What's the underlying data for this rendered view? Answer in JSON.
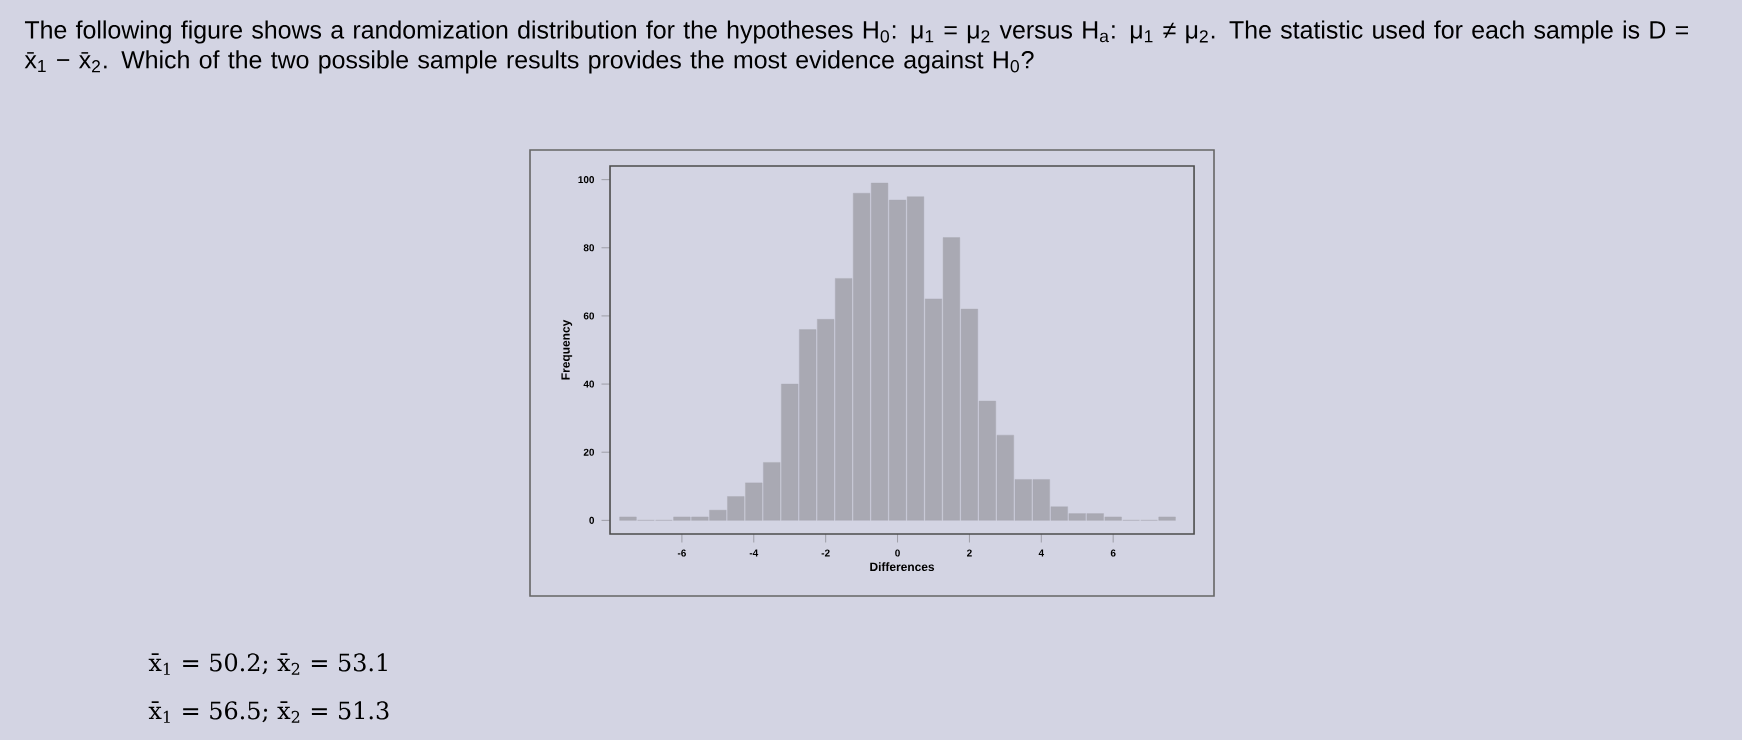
{
  "chart_data": {
    "type": "histogram",
    "title": "The following figure shows a randomization distribution for the hypotheses H$_{0}$: μ$_{1}$ = μ$_{2}$ versus H$_{a}$: μ$_{1}$ ≠ μ$_{2}$. The statistic used for each sample is D = x̄$_{1}$ − x̄$_{2}$. Which of the two possible sample results provides the most evidence against H$_{0}$?",
    "xlabel": "Differences",
    "ylabel": "Frequency",
    "bins": [
      -7.75,
      -7.25,
      -6.75,
      -6.25,
      -5.75,
      -5.25,
      -4.75,
      -4.25,
      -3.75,
      -3.25,
      -2.75,
      -2.25,
      -1.75,
      -1.25,
      -0.75,
      -0.25,
      0.25,
      0.75,
      1.25,
      1.75,
      2.25,
      2.75,
      3.25,
      3.75,
      4.25,
      4.75,
      5.25,
      5.75,
      6.25,
      6.75,
      7.25,
      7.75
    ],
    "values": [
      1,
      0,
      0,
      1,
      1,
      3,
      7,
      11,
      17,
      40,
      56,
      59,
      71,
      96,
      99,
      94,
      95,
      65,
      83,
      62,
      35,
      25,
      12,
      12,
      4,
      2,
      2,
      1,
      0,
      0,
      1
    ],
    "color": "#a9a9b3",
    "xlim": [
      -8,
      8.25
    ],
    "ylim": [
      -4,
      104
    ],
    "xticks": [
      -6,
      -4,
      -2,
      0,
      2,
      4,
      6
    ],
    "yticks": [
      0,
      20,
      40,
      60,
      80,
      100
    ],
    "annotations": [
      "x̄$_{1}$ = 50.2; x̄$_{2}$ = 53.1",
      "x̄$_{1}$ = 56.5; x̄$_{2}$ = 51.3"
    ]
  }
}
